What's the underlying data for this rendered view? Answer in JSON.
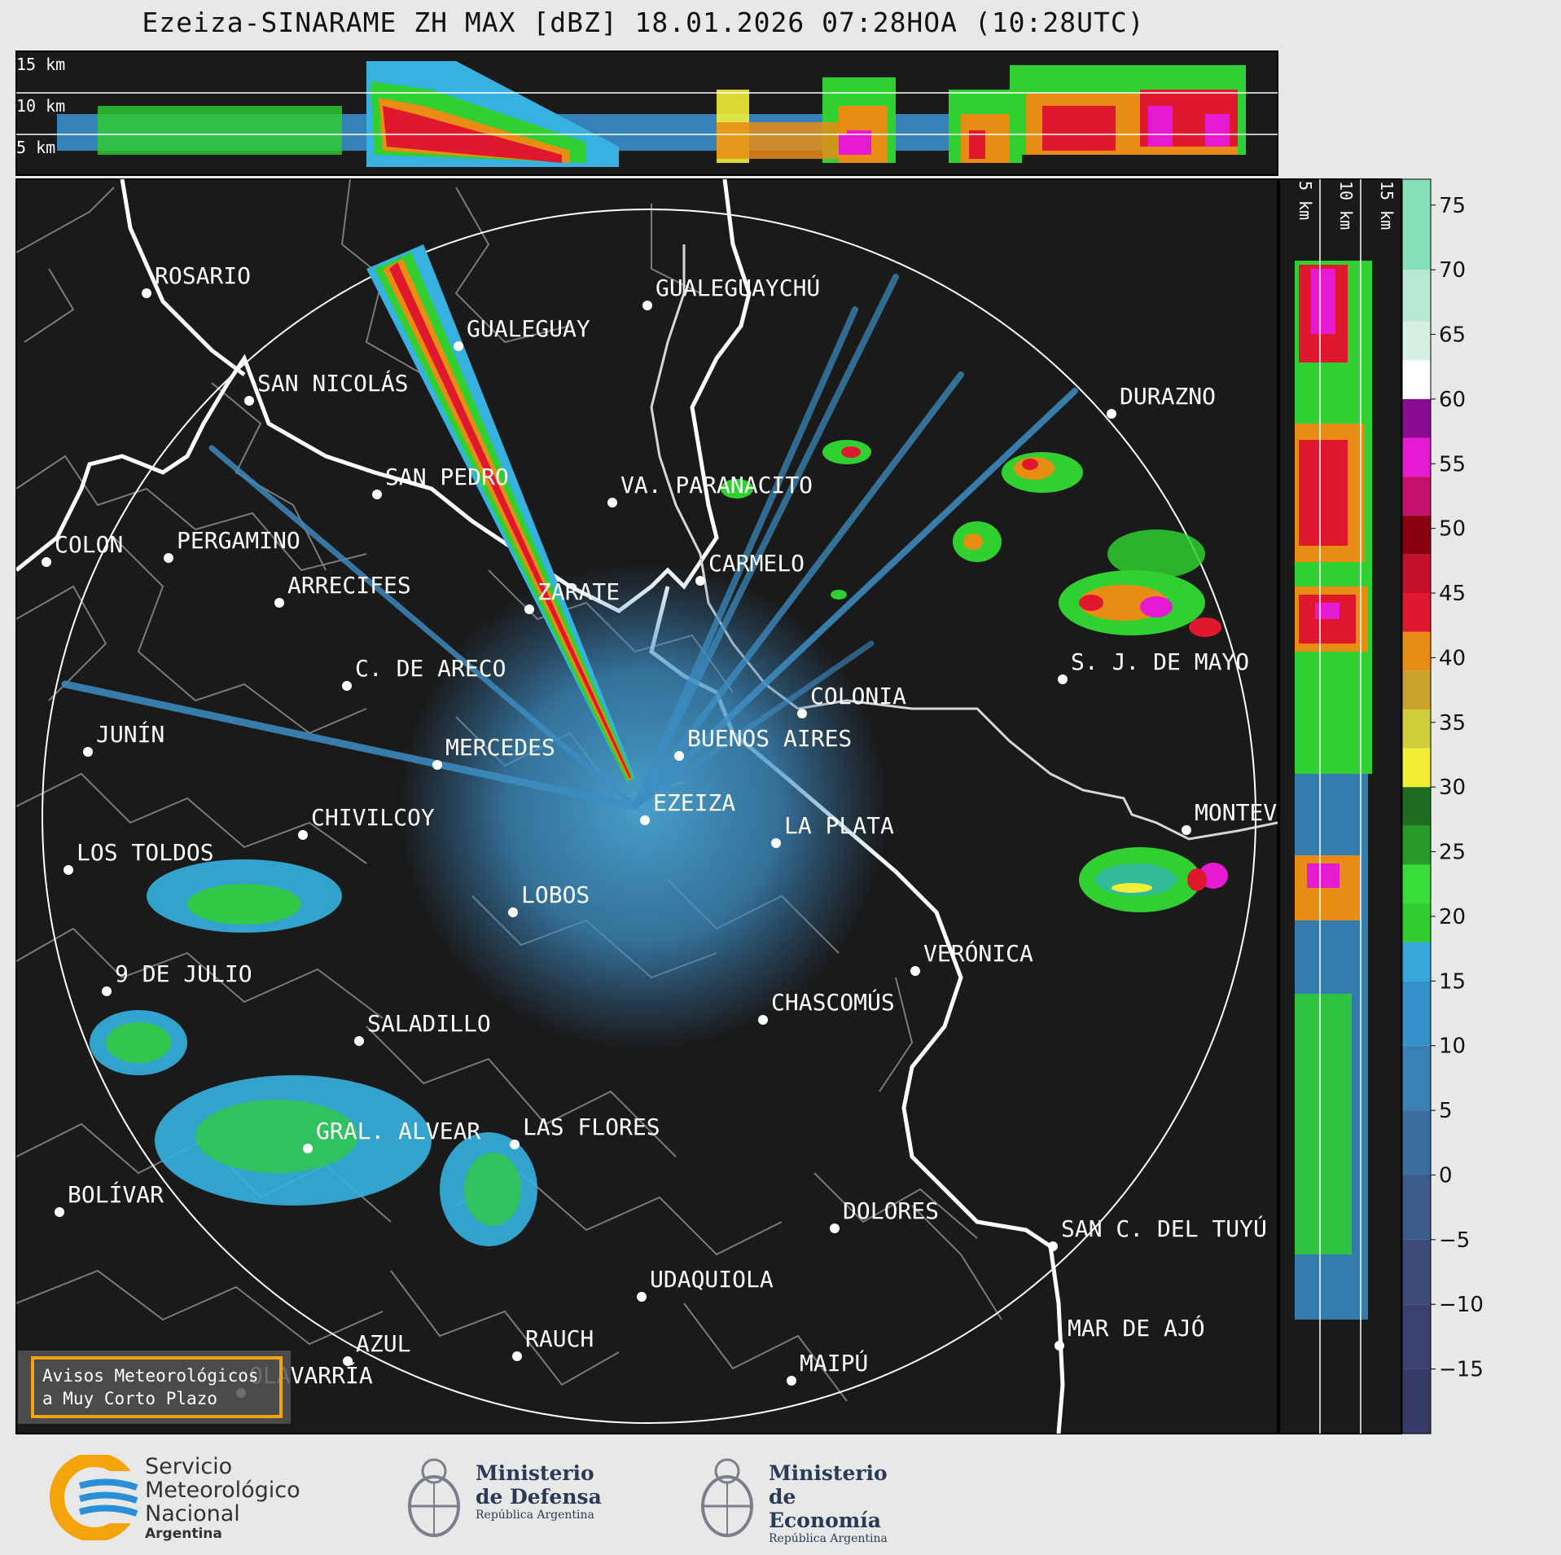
{
  "title": "Ezeiza-SINARAME ZH MAX [dBZ] 18.01.2026 07:28HOA (10:28UTC)",
  "top_panel": {
    "height_labels": [
      "15 km",
      "10 km",
      "5 km"
    ]
  },
  "side_panel": {
    "height_labels": [
      "5 km",
      "10 km",
      "15 km"
    ]
  },
  "colorbar": {
    "unit": "dBZ",
    "ticks": [
      "75",
      "70",
      "65",
      "60",
      "55",
      "50",
      "45",
      "40",
      "35",
      "30",
      "25",
      "20",
      "15",
      "10",
      "5",
      "0",
      "−5",
      "−10",
      "−15"
    ],
    "range": [
      -20,
      77
    ],
    "colors": {
      "deep_blue": "#323a6e",
      "blue": "#2c8ed6",
      "light_blue": "#36b1e0",
      "green": "#2fd02f",
      "dark_green": "#1f6e1f",
      "yellow": "#f2ee38",
      "orange": "#e88c14",
      "red": "#e0182e",
      "dark_red": "#8a0010",
      "magenta": "#e61ad0",
      "purple": "#8a0a90",
      "white": "#ffffff",
      "mint": "#86e0b9"
    }
  },
  "map": {
    "background": "#1a1a1a",
    "cities": [
      {
        "name": "ROSARIO"
      },
      {
        "name": "GUALEGUAYCHÚ"
      },
      {
        "name": "GUALEGUAY"
      },
      {
        "name": "SAN NICOLÁS"
      },
      {
        "name": "DURAZNO"
      },
      {
        "name": "SAN PEDRO"
      },
      {
        "name": "VA. PARANACITO"
      },
      {
        "name": "COLON"
      },
      {
        "name": "PERGAMINO"
      },
      {
        "name": "CARMELO"
      },
      {
        "name": "ARRECIFES"
      },
      {
        "name": "ZÁRATE"
      },
      {
        "name": "S. J. DE MAYO"
      },
      {
        "name": "C. DE ARECO"
      },
      {
        "name": "COLONIA"
      },
      {
        "name": "JUNÍN"
      },
      {
        "name": "BUENOS AIRES"
      },
      {
        "name": "MERCEDES"
      },
      {
        "name": "EZEIZA"
      },
      {
        "name": "MONTEVIDEO"
      },
      {
        "name": "CHIVILCOY"
      },
      {
        "name": "LA PLATA"
      },
      {
        "name": "LOS TOLDOS"
      },
      {
        "name": "LOBOS"
      },
      {
        "name": "VERÓNICA"
      },
      {
        "name": "9 DE JULIO"
      },
      {
        "name": "CHASCOMÚS"
      },
      {
        "name": "SALADILLO"
      },
      {
        "name": "GRAL. ALVEAR"
      },
      {
        "name": "LAS FLORES"
      },
      {
        "name": "BOLÍVAR"
      },
      {
        "name": "DOLORES"
      },
      {
        "name": "SAN C. DEL TUYÚ"
      },
      {
        "name": "UDAQUIOLA"
      },
      {
        "name": "MAR DE AJÓ"
      },
      {
        "name": "AZUL"
      },
      {
        "name": "RAUCH"
      },
      {
        "name": "MAIPÚ"
      },
      {
        "name": "OLAVARRÍA"
      }
    ],
    "warning_box": [
      "Avisos Meteorológicos",
      "a Muy Corto Plazo"
    ]
  },
  "footer": {
    "smn": [
      "Servicio",
      "Meteorológico",
      "Nacional",
      "Argentina"
    ],
    "defensa": [
      "Ministerio",
      "de Defensa",
      "República Argentina"
    ],
    "economia": [
      "Ministerio",
      "de Economía",
      "República Argentina"
    ]
  }
}
